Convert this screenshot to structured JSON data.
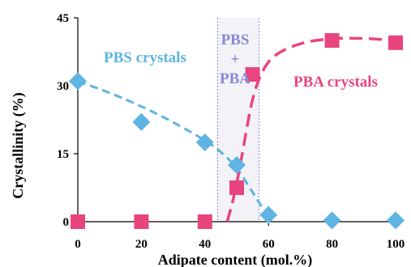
{
  "chart_data": {
    "type": "scatter",
    "title": "",
    "xlabel": "Adipate content (mol.%)",
    "ylabel": "Crystallinity (%)",
    "xlim": [
      0,
      100
    ],
    "ylim": [
      0,
      45
    ],
    "x_ticks": [
      0,
      20,
      40,
      60,
      80,
      100
    ],
    "y_ticks": [
      0,
      15,
      30,
      45
    ],
    "x_tick_labels": [
      "0",
      "20",
      "40",
      "60",
      "80",
      "100"
    ],
    "y_tick_labels": [
      "0",
      "15",
      "30",
      "45"
    ],
    "grid": false,
    "legend": "none",
    "series": [
      {
        "name": "PBS crystals",
        "marker": "diamond",
        "color": "#5fb4e2",
        "points": [
          {
            "x": 0,
            "y": 31
          },
          {
            "x": 20,
            "y": 22
          },
          {
            "x": 40,
            "y": 17.5
          },
          {
            "x": 50,
            "y": 12.5
          },
          {
            "x": 60,
            "y": 1.5
          },
          {
            "x": 80,
            "y": 0.3
          },
          {
            "x": 100,
            "y": 0.3
          }
        ]
      },
      {
        "name": "PBA crystals",
        "marker": "square",
        "color": "#e8457f",
        "points": [
          {
            "x": 0,
            "y": 0
          },
          {
            "x": 20,
            "y": 0
          },
          {
            "x": 40,
            "y": 0
          },
          {
            "x": 50,
            "y": 7.5
          },
          {
            "x": 55,
            "y": 32.5
          },
          {
            "x": 80,
            "y": 40
          },
          {
            "x": 100,
            "y": 39.5
          }
        ]
      }
    ],
    "trend_lines": [
      {
        "color": "#5fb4e2",
        "style": "dashed",
        "points": [
          [
            0,
            31
          ],
          [
            10,
            28.5
          ],
          [
            20,
            25.5
          ],
          [
            30,
            22
          ],
          [
            40,
            18
          ],
          [
            45,
            15.5
          ],
          [
            50,
            12
          ],
          [
            55,
            6.5
          ],
          [
            60,
            1
          ]
        ]
      },
      {
        "color": "#e8457f",
        "style": "dashed",
        "points": [
          [
            47,
            0
          ],
          [
            49,
            5
          ],
          [
            51,
            12
          ],
          [
            53,
            20
          ],
          [
            55,
            27.5
          ],
          [
            58,
            33.5
          ],
          [
            62,
            37
          ],
          [
            70,
            39.5
          ],
          [
            80,
            40.5
          ],
          [
            90,
            40.5
          ],
          [
            100,
            40
          ]
        ]
      }
    ],
    "region": {
      "x_from": 44,
      "x_to": 57,
      "fill": "#f2f2f7",
      "border": "#8a8ac8"
    },
    "annotations": {
      "pbs": {
        "text": "PBS crystals",
        "color": "#5fb4e2"
      },
      "mid_line1": {
        "text": "PBS",
        "color": "#8888d8"
      },
      "mid_line2": {
        "text": "+",
        "color": "#8888d8"
      },
      "mid_line3": {
        "text": "PBA",
        "color": "#8888d8"
      },
      "pba": {
        "text": "PBA crystals",
        "color": "#e8457f"
      }
    }
  }
}
